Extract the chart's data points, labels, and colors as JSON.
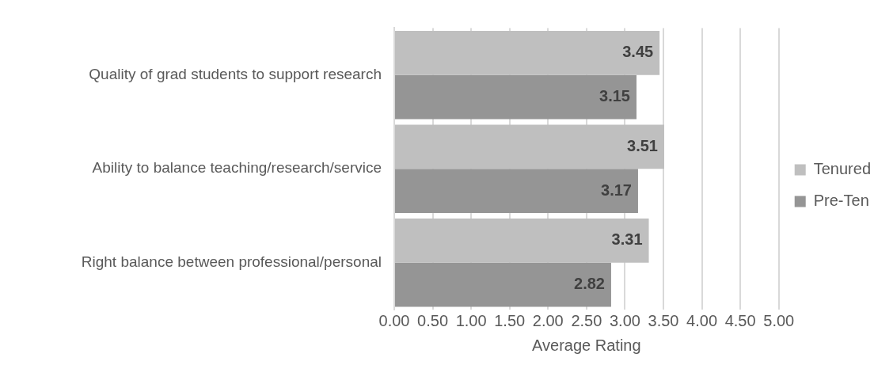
{
  "chart_data": {
    "type": "bar",
    "orientation": "horizontal",
    "xlabel": "Average Rating",
    "categories": [
      "Quality of grad students to support research",
      "Ability to balance teaching/research/service",
      "Right balance between professional/personal"
    ],
    "series": [
      {
        "name": "Tenured",
        "color": "#bfbfbf",
        "values": [
          3.45,
          3.51,
          3.31
        ]
      },
      {
        "name": "Pre-Ten",
        "color": "#959595",
        "values": [
          3.15,
          3.17,
          2.82
        ]
      }
    ],
    "xlim": [
      0,
      5
    ],
    "xticks": [
      {
        "value": 0,
        "label": "0.00"
      },
      {
        "value": 0.5,
        "label": "0.50"
      },
      {
        "value": 1,
        "label": "1.00"
      },
      {
        "value": 1.5,
        "label": "1.50"
      },
      {
        "value": 2,
        "label": "2.00"
      },
      {
        "value": 2.5,
        "label": "2.50"
      },
      {
        "value": 3,
        "label": "3.00"
      },
      {
        "value": 3.5,
        "label": "3.50"
      },
      {
        "value": 4,
        "label": "4.00"
      },
      {
        "value": 4.5,
        "label": "4.50"
      },
      {
        "value": 5,
        "label": "5.00"
      }
    ],
    "grid": "x",
    "legend": "right",
    "data_labels": true
  }
}
